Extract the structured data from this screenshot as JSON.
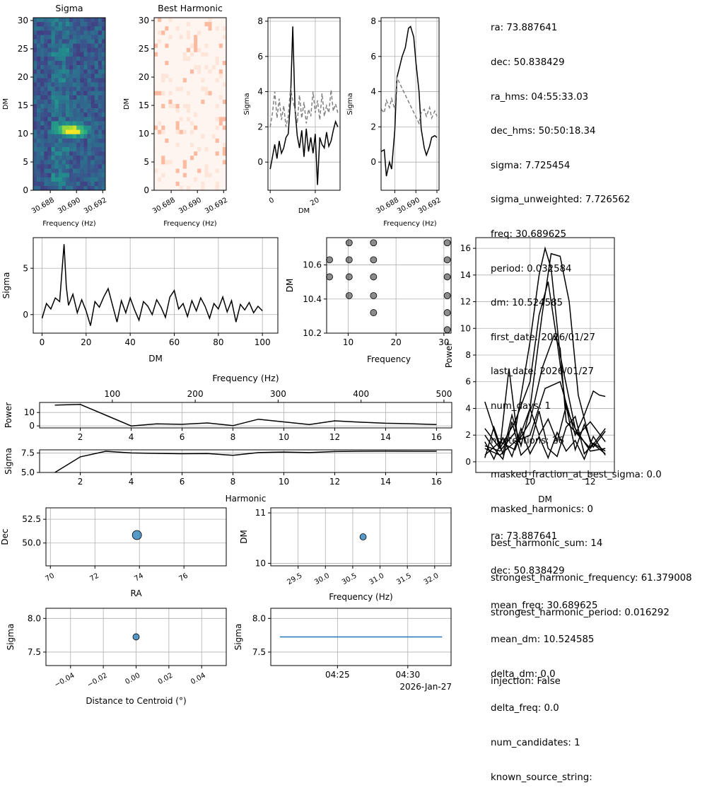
{
  "chart_data": [
    {
      "type": "heatmap",
      "title": "Sigma",
      "xlabel": "Frequency (Hz)",
      "ylabel": "DM",
      "xticks": [
        "30.688",
        "30.690",
        "30.692"
      ],
      "yticks": [
        "0",
        "5",
        "10",
        "15",
        "20",
        "25",
        "30"
      ],
      "xlim": [
        30.6867,
        30.6922
      ],
      "ylim": [
        0,
        30.5
      ],
      "colormap": "viridis",
      "peak": {
        "frequency": 30.6897,
        "dm": 10.5
      }
    },
    {
      "type": "heatmap",
      "title": "Best Harmonic",
      "xlabel": "Frequency (Hz)",
      "ylabel": "DM",
      "xticks": [
        "30.688",
        "30.690",
        "30.692"
      ],
      "yticks": [
        "0",
        "5",
        "10",
        "15",
        "20",
        "25",
        "30"
      ],
      "xlim": [
        30.6867,
        30.6922
      ],
      "ylim": [
        0,
        30.5
      ],
      "colormap": "reds"
    },
    {
      "type": "line",
      "xlabel": "DM",
      "ylabel": "Sigma",
      "xlim": [
        -1,
        31
      ],
      "ylim": [
        -1.6,
        8.2
      ],
      "xticks": [
        "0",
        "20"
      ],
      "yticks": [
        "0",
        "2",
        "4",
        "6",
        "8"
      ],
      "series": [
        {
          "name": "sigma",
          "color": "#000000",
          "style": "solid",
          "x": [
            0,
            1,
            2,
            3,
            4,
            5,
            6,
            7,
            8,
            9,
            10,
            11,
            12,
            13,
            14,
            15,
            16,
            17,
            18,
            19,
            20,
            21,
            22,
            23,
            24,
            25,
            26,
            27,
            28,
            29,
            30
          ],
          "y": [
            -0.4,
            0.3,
            1.0,
            0.2,
            1.2,
            0.5,
            0.8,
            1.4,
            1.6,
            3.5,
            7.7,
            3.0,
            1.5,
            0.8,
            1.8,
            0.3,
            1.9,
            0.6,
            1.4,
            0.5,
            1.6,
            -1.3,
            1.4,
            1.0,
            0.8,
            1.7,
            0.9,
            1.2,
            1.8,
            2.3,
            2.0
          ]
        },
        {
          "name": "unweighted",
          "color": "#808080",
          "style": "dashed",
          "x": [
            0,
            1,
            2,
            3,
            4,
            5,
            6,
            7,
            8,
            9,
            10,
            11,
            12,
            13,
            14,
            15,
            16,
            17,
            18,
            19,
            20,
            21,
            22,
            23,
            24,
            25,
            26,
            27,
            28,
            29,
            30
          ],
          "y": [
            2.0,
            2.8,
            4.0,
            2.5,
            3.6,
            2.4,
            3.2,
            2.0,
            2.6,
            4.2,
            3.5,
            3.0,
            2.2,
            3.8,
            2.5,
            3.4,
            2.2,
            3.0,
            2.6,
            4.0,
            2.8,
            3.5,
            2.4,
            3.9,
            2.6,
            3.2,
            2.8,
            4.1,
            2.9,
            3.3,
            2.8
          ]
        }
      ]
    },
    {
      "type": "line",
      "xlabel": "Frequency (Hz)",
      "ylabel": "Sigma",
      "xlim": [
        30.6867,
        30.6922
      ],
      "ylim": [
        -1.6,
        8.2
      ],
      "xticks": [
        "30.688",
        "30.690",
        "30.692"
      ],
      "yticks": [
        "0",
        "2",
        "4",
        "6",
        "8"
      ],
      "series": [
        {
          "name": "sigma",
          "color": "#000000",
          "style": "solid",
          "x": [
            30.6867,
            30.687,
            30.6872,
            30.6875,
            30.6877,
            30.688,
            30.6882,
            30.6885,
            30.6887,
            30.689,
            30.6893,
            30.6895,
            30.6898,
            30.69,
            30.6903,
            30.6905,
            30.6908,
            30.691,
            30.6913,
            30.6915,
            30.6918,
            30.692
          ],
          "y": [
            0.6,
            0.7,
            -0.8,
            0.0,
            -0.4,
            1.8,
            4.8,
            5.5,
            6.0,
            6.5,
            7.6,
            7.7,
            7.1,
            5.7,
            4.0,
            1.9,
            0.8,
            0.4,
            0.9,
            1.4,
            1.5,
            1.4
          ]
        },
        {
          "name": "unweighted",
          "color": "#808080",
          "style": "dashed",
          "x": [
            30.6867,
            30.687,
            30.6872,
            30.6875,
            30.6877,
            30.688,
            30.6882,
            30.6903,
            30.6905,
            30.6908,
            30.691,
            30.6913,
            30.6915,
            30.6918,
            30.692
          ],
          "y": [
            3.0,
            2.8,
            3.5,
            3.1,
            3.6,
            3.0,
            4.8,
            2.2,
            2.8,
            3.0,
            2.6,
            3.1,
            2.5,
            2.9,
            2.6
          ]
        }
      ]
    },
    {
      "type": "line",
      "xlabel": "DM",
      "ylabel": "Sigma",
      "xlim": [
        -4,
        107
      ],
      "ylim": [
        -2,
        8.3
      ],
      "xticks": [
        "0",
        "20",
        "40",
        "60",
        "80",
        "100"
      ],
      "yticks": [
        "0",
        "5"
      ],
      "series": [
        {
          "name": "sigma",
          "color": "#000000",
          "x": [
            0,
            2,
            4,
            6,
            8,
            10,
            11,
            12,
            14,
            16,
            18,
            20,
            22,
            24,
            26,
            28,
            30,
            32,
            34,
            36,
            38,
            40,
            42,
            44,
            46,
            48,
            50,
            52,
            54,
            56,
            58,
            60,
            62,
            64,
            66,
            68,
            70,
            72,
            74,
            76,
            78,
            80,
            82,
            84,
            86,
            88,
            90,
            92,
            94,
            96,
            98,
            100
          ],
          "y": [
            -0.4,
            1.2,
            0.6,
            1.8,
            1.4,
            7.6,
            3.0,
            1.0,
            2.2,
            0.2,
            1.6,
            0.4,
            -1.2,
            1.4,
            0.8,
            1.9,
            2.8,
            1.0,
            -0.8,
            1.5,
            0.2,
            1.8,
            0.5,
            -0.6,
            1.4,
            0.9,
            0.0,
            1.6,
            0.8,
            -0.3,
            1.9,
            2.6,
            0.6,
            1.2,
            -0.2,
            1.5,
            0.4,
            1.8,
            0.9,
            -0.4,
            1.2,
            0.6,
            1.9,
            0.3,
            1.5,
            -0.8,
            1.1,
            0.5,
            1.3,
            0.2,
            0.9,
            0.4
          ]
        }
      ]
    },
    {
      "type": "scatter",
      "xlabel": "Frequency",
      "ylabel": "DM",
      "xlim": [
        5.5,
        31.5
      ],
      "ylim": [
        10.2,
        10.76
      ],
      "xticks": [
        "10",
        "20",
        "30"
      ],
      "yticks": [
        "10.2",
        "10.4",
        "10.6"
      ],
      "points": [
        {
          "x": 6.1,
          "y": 10.63
        },
        {
          "x": 6.1,
          "y": 10.53
        },
        {
          "x": 10.2,
          "y": 10.73
        },
        {
          "x": 10.2,
          "y": 10.63
        },
        {
          "x": 10.2,
          "y": 10.53
        },
        {
          "x": 10.2,
          "y": 10.42
        },
        {
          "x": 15.3,
          "y": 10.73
        },
        {
          "x": 15.3,
          "y": 10.63
        },
        {
          "x": 15.3,
          "y": 10.53
        },
        {
          "x": 15.3,
          "y": 10.42
        },
        {
          "x": 15.3,
          "y": 10.32
        },
        {
          "x": 30.7,
          "y": 10.73
        },
        {
          "x": 30.7,
          "y": 10.63
        },
        {
          "x": 30.7,
          "y": 10.53
        },
        {
          "x": 30.7,
          "y": 10.42
        },
        {
          "x": 30.7,
          "y": 10.32
        },
        {
          "x": 30.7,
          "y": 10.22
        }
      ]
    },
    {
      "type": "line",
      "xlabel": "DM",
      "ylabel": "Power",
      "xlim": [
        8.2,
        12.8
      ],
      "ylim": [
        -0.8,
        16.8
      ],
      "xticks": [
        "10",
        "12"
      ],
      "yticks": [
        "0",
        "2",
        "4",
        "6",
        "8",
        "10",
        "12",
        "14",
        "16"
      ],
      "series": [
        {
          "name": "h1",
          "x": [
            8.5,
            9.0,
            9.5,
            10.0,
            10.3,
            10.5,
            10.7,
            11.0,
            11.5,
            12.0,
            12.5
          ],
          "y": [
            1.2,
            0.8,
            2.2,
            9.0,
            14.0,
            16.0,
            14.5,
            8.0,
            2.5,
            0.8,
            1.0
          ]
        },
        {
          "name": "h2",
          "x": [
            8.5,
            9.0,
            9.5,
            10.0,
            10.4,
            10.7,
            11.0,
            11.3,
            11.6,
            12.0,
            12.5
          ],
          "y": [
            0.5,
            1.5,
            0.9,
            4.0,
            11.0,
            15.6,
            15.4,
            12.0,
            5.0,
            1.5,
            0.6
          ]
        },
        {
          "name": "h3",
          "x": [
            8.5,
            9.0,
            9.5,
            10.0,
            10.3,
            10.6,
            10.9,
            11.2,
            11.6,
            12.0,
            12.5
          ],
          "y": [
            2.5,
            1.0,
            3.0,
            6.0,
            11.0,
            13.5,
            9.0,
            4.0,
            2.0,
            3.0,
            1.5
          ]
        },
        {
          "name": "h4",
          "x": [
            8.5,
            9.0,
            9.3,
            9.6,
            10.0,
            10.4,
            10.8,
            11.0,
            11.2,
            11.6,
            12.0,
            12.5
          ],
          "y": [
            4.5,
            1.0,
            7.0,
            1.5,
            3.0,
            7.0,
            9.5,
            8.5,
            3.0,
            2.0,
            1.0,
            2.5
          ]
        },
        {
          "name": "h5",
          "x": [
            8.5,
            9.0,
            9.5,
            10.0,
            10.5,
            11.0,
            11.5,
            11.8,
            12.1,
            12.3,
            12.5
          ],
          "y": [
            1.0,
            0.5,
            1.5,
            2.0,
            5.5,
            6.0,
            2.0,
            3.5,
            5.3,
            5.0,
            4.9
          ]
        },
        {
          "name": "h6",
          "x": [
            8.5,
            8.8,
            9.1,
            9.4,
            9.7,
            10.0,
            10.3,
            10.6,
            10.9,
            11.2,
            11.5,
            11.8,
            12.1,
            12.5
          ],
          "y": [
            0.3,
            2.6,
            0.6,
            3.5,
            1.2,
            4.0,
            2.0,
            3.2,
            1.5,
            4.2,
            0.9,
            2.8,
            1.1,
            2.3
          ]
        },
        {
          "name": "h7",
          "x": [
            8.5,
            8.8,
            9.1,
            9.4,
            9.7,
            10.0,
            10.3,
            10.6,
            10.9,
            11.2,
            11.5,
            11.8,
            12.1,
            12.5
          ],
          "y": [
            1.5,
            0.2,
            1.8,
            0.4,
            2.5,
            0.6,
            1.9,
            0.3,
            2.2,
            0.8,
            1.6,
            0.2,
            1.9,
            0.5
          ]
        },
        {
          "name": "h8",
          "x": [
            8.5,
            8.8,
            9.1,
            9.4,
            9.7,
            10.0,
            10.3,
            10.6,
            10.9,
            11.2,
            11.5,
            11.8,
            12.1,
            12.5
          ],
          "y": [
            2.0,
            1.0,
            0.2,
            3.0,
            0.5,
            1.2,
            3.8,
            1.0,
            0.4,
            2.6,
            3.4,
            0.6,
            1.4,
            0.8
          ]
        }
      ]
    },
    {
      "type": "line",
      "xlabel": "",
      "ylabel": "Power",
      "top_xlabel": "Frequency (Hz)",
      "top_xticks": [
        "100",
        "200",
        "300",
        "400",
        "500"
      ],
      "xlim": [
        0.4,
        16.6
      ],
      "ylim": [
        -1.5,
        17.5
      ],
      "xticks": [
        "2",
        "4",
        "6",
        "8",
        "10",
        "12",
        "14",
        "16"
      ],
      "yticks": [
        "0",
        "10"
      ],
      "series": [
        {
          "name": "power",
          "x": [
            1,
            2,
            3,
            4,
            5,
            6,
            7,
            8,
            9,
            10,
            11,
            12,
            13,
            14,
            15,
            16
          ],
          "y": [
            15.5,
            16.0,
            8.0,
            0.0,
            1.5,
            1.2,
            2.2,
            0.2,
            5.0,
            3.0,
            1.0,
            3.8,
            2.8,
            2.0,
            1.6,
            1.0
          ]
        }
      ]
    },
    {
      "type": "line",
      "xlabel": "Harmonic",
      "ylabel": "Sigma",
      "xlim": [
        0.4,
        16.6
      ],
      "ylim": [
        5.0,
        7.9
      ],
      "xticks": [
        "2",
        "4",
        "6",
        "8",
        "10",
        "12",
        "14",
        "16"
      ],
      "yticks": [
        "5.0",
        "7.5"
      ],
      "series": [
        {
          "name": "sigma",
          "x": [
            1,
            2,
            3,
            4,
            5,
            6,
            7,
            8,
            9,
            10,
            11,
            12,
            13,
            14,
            15,
            16
          ],
          "y": [
            5.0,
            7.0,
            7.72,
            7.5,
            7.45,
            7.4,
            7.42,
            7.2,
            7.55,
            7.62,
            7.55,
            7.68,
            7.72,
            7.73,
            7.72,
            7.72
          ]
        }
      ]
    },
    {
      "type": "scatter",
      "xlabel": "RA",
      "ylabel": "Dec",
      "xlim": [
        69.8,
        77.9
      ],
      "ylim": [
        47.6,
        53.7
      ],
      "xticks": [
        "70",
        "72",
        "74",
        "76"
      ],
      "yticks": [
        "50.0",
        "52.5"
      ],
      "points": [
        {
          "x": 73.887641,
          "y": 50.838429
        }
      ]
    },
    {
      "type": "scatter",
      "xlabel": "Frequency (Hz)",
      "ylabel": "DM",
      "xlim": [
        29.0,
        32.3
      ],
      "ylim": [
        9.95,
        11.1
      ],
      "xticks": [
        "29.5",
        "30.0",
        "30.5",
        "31.0",
        "31.5",
        "32.0"
      ],
      "yticks": [
        "10",
        "11"
      ],
      "points": [
        {
          "x": 30.689625,
          "y": 10.524585
        }
      ]
    },
    {
      "type": "scatter",
      "xlabel": "Distance to Centroid (°)",
      "ylabel": "Sigma",
      "xlim": [
        -0.055,
        0.055
      ],
      "ylim": [
        7.3,
        8.15
      ],
      "xticks": [
        "−0.04",
        "−0.02",
        "0.00",
        "0.02",
        "0.04"
      ],
      "yticks": [
        "7.5",
        "8.0"
      ],
      "points": [
        {
          "x": 0.0,
          "y": 7.725454
        }
      ]
    },
    {
      "type": "line",
      "xlabel": "",
      "ylabel": "Sigma",
      "xlim": [
        0,
        1
      ],
      "ylim": [
        7.3,
        8.15
      ],
      "xticks": [
        "04:25",
        "04:30"
      ],
      "xtick_offset": "2026-Jan-27",
      "yticks": [
        "7.5",
        "8.0"
      ],
      "series": [
        {
          "name": "sigma",
          "x": [
            0.05,
            0.95
          ],
          "y": [
            7.725454,
            7.725454
          ]
        }
      ]
    }
  ],
  "info_top": [
    "ra: 73.887641",
    "dec: 50.838429",
    "ra_hms: 04:55:33.03",
    "dec_hms: 50:50:18.34",
    "sigma: 7.725454",
    "sigma_unweighted: 7.726562",
    "freq: 30.689625",
    "period: 0.032584",
    "dm: 10.524585",
    "first_date: 2026/01/27",
    "last_date: 2026/01/27",
    "num_days: 1",
    "ndetections: 26",
    "masked_fraction_at_best_sigma: 0.0",
    "masked_harmonics: 0",
    "best_harmonic_sum: 14",
    "strongest_harmonic_frequency: 61.379008",
    "strongest_harmonic_period: 0.016292",
    "",
    "injection: False"
  ],
  "info_bottom": [
    "ra: 73.887641",
    "dec: 50.838429",
    "mean_freq: 30.689625",
    "mean_dm: 10.524585",
    "delta_dm: 0.0",
    "delta_freq: 0.0",
    "num_candidates: 1",
    "known_source_string:"
  ]
}
